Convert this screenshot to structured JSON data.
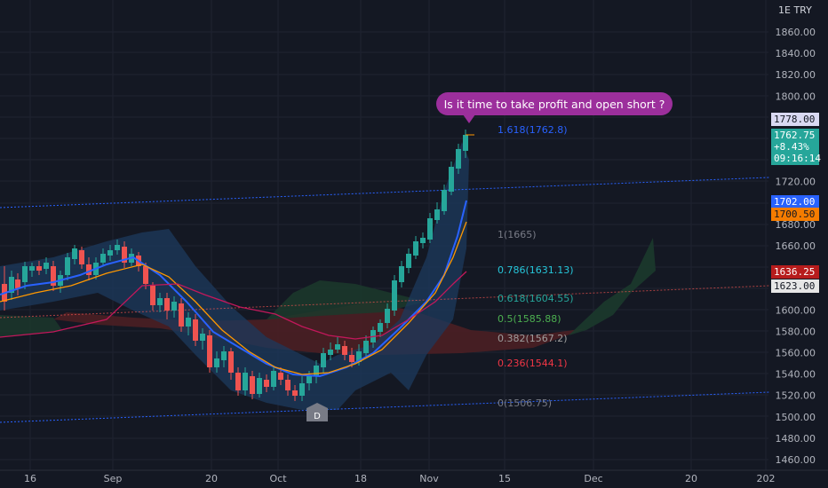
{
  "chart_data": {
    "type": "candlestick",
    "annotation": "Is it time to take profit and open short ?",
    "currency_label": "1E TRY",
    "price_axis": {
      "ticks": [
        "1860.00",
        "1840.00",
        "1820.00",
        "1800.00",
        "1720.00",
        "1680.00",
        "1660.00",
        "1600.00",
        "1580.00",
        "1560.00",
        "1540.00",
        "1520.00",
        "1500.00",
        "1480.00",
        "1460.00"
      ],
      "ylim": [
        1452,
        1875
      ]
    },
    "time_axis": {
      "labels": [
        "16",
        "Sep",
        "20",
        "Oct",
        "18",
        "Nov",
        "15",
        "Dec",
        "20",
        "202"
      ]
    },
    "price_tags": [
      {
        "text": "1778.00",
        "bg": "#d9d9f2",
        "color": "#131722"
      },
      {
        "text": "1762.75\n+8.43%\n09:16:14",
        "bg": "#26a69a",
        "color": "#ffffff"
      },
      {
        "text": "1702.00",
        "bg": "#2962ff",
        "color": "#ffffff"
      },
      {
        "text": "1700.50",
        "bg": "#f57c00",
        "color": "#131722"
      },
      {
        "text": "1636.25",
        "bg": "#b71c1c",
        "color": "#ffffff"
      },
      {
        "text": "1623.00",
        "bg": "#e6e6e6",
        "color": "#131722"
      }
    ],
    "fib_levels": [
      {
        "label": "1.618(1762.8)",
        "color": "#2962ff"
      },
      {
        "label": "1(1665)",
        "color": "#787b86"
      },
      {
        "label": "0.786(1631.13)",
        "color": "#26c6da"
      },
      {
        "label": "0.618(1604.55)",
        "color": "#26a69a"
      },
      {
        "label": "0.5(1585.88)",
        "color": "#4caf50"
      },
      {
        "label": "0.382(1567.2)",
        "color": "#9e9e9e"
      },
      {
        "label": "0.236(1544.1)",
        "color": "#f23645"
      },
      {
        "label": "0(1506.75)",
        "color": "#787b86"
      }
    ],
    "divergence_marker": "D",
    "colors": {
      "up": "#26a69a",
      "down": "#ef5350",
      "ema_fast": "#2962ff",
      "ema_mid": "#ff9800",
      "ema_slow": "#c2185b",
      "bollinger_fill": "#1c3a5e"
    }
  }
}
